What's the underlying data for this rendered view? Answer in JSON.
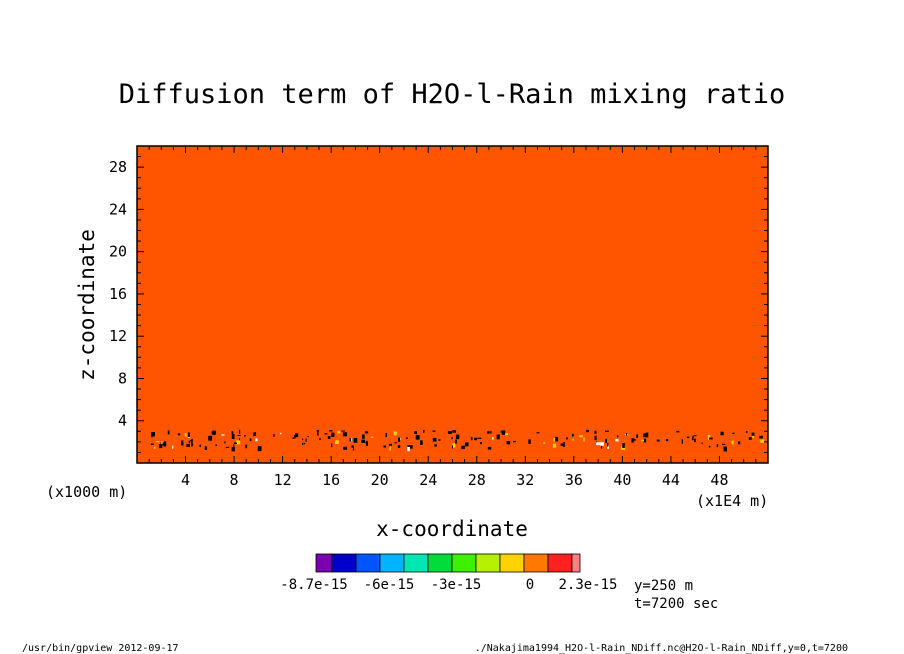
{
  "chart_data": {
    "type": "heatmap",
    "title": "Diffusion term of H2O-l-Rain mixing ratio",
    "xlabel": "x-coordinate",
    "ylabel": "z-coordinate",
    "x_unit_note": "(x1E4 m)",
    "y_unit_note": "(x1000 m)",
    "xlim": [
      0,
      52
    ],
    "ylim": [
      0,
      30
    ],
    "xticks": [
      4,
      8,
      12,
      16,
      20,
      24,
      28,
      32,
      36,
      40,
      44,
      48
    ],
    "yticks": [
      4,
      8,
      12,
      16,
      20,
      24,
      28
    ],
    "dominant_color": "#ff5500",
    "speckle_color": "#000000",
    "speckle_band_z": [
      1.5,
      3.2
    ],
    "colorbar": {
      "colors": [
        "#7a00b0",
        "#0000cc",
        "#0055ff",
        "#00b4ff",
        "#00e6b4",
        "#00dc3c",
        "#3cf000",
        "#b4f000",
        "#ffd200",
        "#ff7800",
        "#ff2020",
        "#ff8080"
      ],
      "labels": [
        "-8.7e-15",
        "-6e-15",
        "-3e-15",
        "0",
        "2.3e-15"
      ]
    },
    "info": {
      "y_position": "y=250 m",
      "time": "t=7200 sec"
    }
  },
  "footer": {
    "left": "/usr/bin/gpview  2012-09-17",
    "right": "./Nakajima1994_H2O-l-Rain_NDiff.nc@H2O-l-Rain_NDiff,y=0,t=7200"
  }
}
